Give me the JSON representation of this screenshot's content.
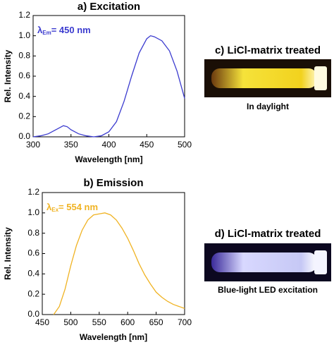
{
  "chart_data": [
    {
      "type": "line",
      "title": "a) Excitation",
      "xlabel": "Wavelength [nm]",
      "ylabel": "Rel. Intensity",
      "annotation": {
        "symbol": "λ",
        "subscript": "Em",
        "text": "= 450 nm"
      },
      "x": [
        300,
        310,
        320,
        330,
        340,
        345,
        350,
        360,
        370,
        380,
        390,
        400,
        410,
        420,
        430,
        440,
        450,
        455,
        460,
        470,
        480,
        490,
        500
      ],
      "series": [
        {
          "color": "#3b3bcf",
          "values": [
            0.0,
            0.01,
            0.03,
            0.07,
            0.11,
            0.1,
            0.07,
            0.03,
            0.01,
            0.0,
            0.01,
            0.05,
            0.15,
            0.35,
            0.6,
            0.83,
            0.97,
            1.0,
            0.99,
            0.95,
            0.85,
            0.65,
            0.38
          ]
        }
      ],
      "xlim": [
        300,
        500
      ],
      "xticks": [
        300,
        350,
        400,
        450,
        500
      ],
      "ylim": [
        0,
        1.2
      ],
      "yticks": [
        {
          "value": 0,
          "label": "0.0"
        },
        {
          "value": 0.2,
          "label": "0.2"
        },
        {
          "value": 0.4,
          "label": "0.4"
        },
        {
          "value": 0.6,
          "label": "0.6"
        },
        {
          "value": 0.8,
          "label": "0.8"
        },
        {
          "value": 1,
          "label": "1.0"
        },
        {
          "value": 1.2,
          "label": "1.2"
        }
      ]
    },
    {
      "type": "line",
      "title": "b) Emission",
      "xlabel": "Wavelength [nm]",
      "ylabel": "Rel. Intensity",
      "annotation": {
        "symbol": "λ",
        "subscript": "Ex",
        "text": "= 554 nm"
      },
      "x": [
        470,
        480,
        490,
        500,
        510,
        520,
        530,
        540,
        550,
        560,
        570,
        580,
        590,
        600,
        610,
        620,
        630,
        640,
        650,
        660,
        670,
        680,
        690,
        700
      ],
      "series": [
        {
          "color": "#f0b323",
          "values": [
            0.0,
            0.08,
            0.25,
            0.48,
            0.68,
            0.83,
            0.93,
            0.98,
            0.99,
            1.0,
            0.98,
            0.93,
            0.85,
            0.75,
            0.63,
            0.5,
            0.39,
            0.3,
            0.22,
            0.17,
            0.13,
            0.1,
            0.08,
            0.06
          ]
        }
      ],
      "xlim": [
        450,
        700
      ],
      "xticks": [
        450,
        500,
        550,
        600,
        650,
        700
      ],
      "ylim": [
        0,
        1.2
      ],
      "yticks": [
        {
          "value": 0,
          "label": "0.0"
        },
        {
          "value": 0.2,
          "label": "0.2"
        },
        {
          "value": 0.4,
          "label": "0.4"
        },
        {
          "value": 0.6,
          "label": "0.6"
        },
        {
          "value": 0.8,
          "label": "0.8"
        },
        {
          "value": 1,
          "label": "1.0"
        },
        {
          "value": 1.2,
          "label": "1.2"
        }
      ]
    }
  ],
  "panels": [
    {
      "title": "c) LiCl-matrix treated",
      "caption": "In daylight"
    },
    {
      "title": "d) LiCl-matrix treated",
      "caption": "Blue-light LED excitation"
    }
  ]
}
